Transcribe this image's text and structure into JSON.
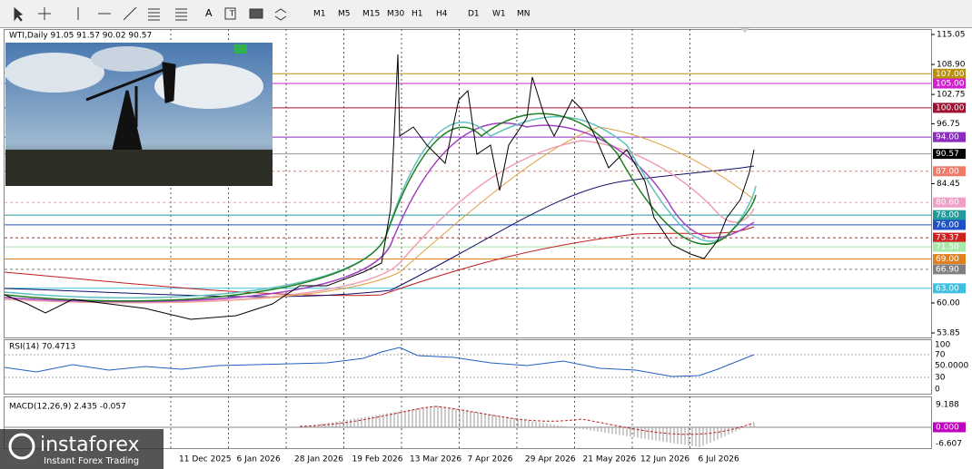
{
  "toolbar": {
    "tools": [
      "A"
    ],
    "timeframes": [
      "M1",
      "M5",
      "M15",
      "M30",
      "H1",
      "H4",
      "D1",
      "W1",
      "MN"
    ]
  },
  "chart": {
    "header": "WTI,Daily  91.05 91.57 90.02 90.57",
    "price_ticks": [
      {
        "value": 115.05,
        "label": "115.05"
      },
      {
        "value": 108.9,
        "label": "108.90"
      },
      {
        "value": 102.75,
        "label": "102.75"
      },
      {
        "value": 96.75,
        "label": "96.75"
      },
      {
        "value": 84.45,
        "label": "84.45"
      },
      {
        "value": 60,
        "label": "60.00"
      },
      {
        "value": 53.85,
        "label": "53.85"
      }
    ],
    "levels": [
      {
        "value": 107,
        "label": "107.00",
        "color": "#b8900c",
        "style": "solid"
      },
      {
        "value": 105,
        "label": "105.00",
        "color": "#d020d0",
        "style": "solid"
      },
      {
        "value": 100,
        "label": "100.00",
        "color": "#a01030",
        "style": "solid"
      },
      {
        "value": 94,
        "label": "94.00",
        "color": "#8a2cc0",
        "style": "solid"
      },
      {
        "value": 90.57,
        "label": "90.57",
        "color": "#000000",
        "style": "solid"
      },
      {
        "value": 87,
        "label": "87.00",
        "color": "#f07a6a",
        "style": "dashed"
      },
      {
        "value": 80.6,
        "label": "80.60",
        "color": "#f0a0c8",
        "style": "dashed"
      },
      {
        "value": 78,
        "label": "78.00",
        "color": "#209a9a",
        "style": "solid"
      },
      {
        "value": 76,
        "label": "76.00",
        "color": "#2050c8",
        "style": "solid"
      },
      {
        "value": 73.37,
        "label": "73.37",
        "color": "#d02020",
        "style": "dashed"
      },
      {
        "value": 71.5,
        "label": "71.50",
        "color": "#a8e8a8",
        "style": "solid"
      },
      {
        "value": 69,
        "label": "69.00",
        "color": "#e08020",
        "style": "solid"
      },
      {
        "value": 66.9,
        "label": "66.90",
        "color": "#808080",
        "style": "dashed"
      },
      {
        "value": 63,
        "label": "63.00",
        "color": "#40c0e0",
        "style": "solid"
      }
    ],
    "dates": [
      "11 Dec 2025",
      "6 Jan 2026",
      "28 Jan 2026",
      "19 Feb 2026",
      "13 Mar 2026",
      "7 Apr 2026",
      "29 Apr 2026",
      "21 May 2026",
      "12 Jun 2026",
      "6 Jul 2026"
    ]
  },
  "rsi": {
    "header": "RSI(14) 70.4713",
    "ticks": [
      "100",
      "70",
      "50.0000",
      "30",
      "0"
    ]
  },
  "macd": {
    "header": "MACD(12,26,9) 2.435 -0.057",
    "ticks": [
      "9.188",
      "0.000",
      "-6.607"
    ]
  },
  "logo": {
    "name": "instaforex",
    "tagline": "Instant Forex Trading"
  }
}
